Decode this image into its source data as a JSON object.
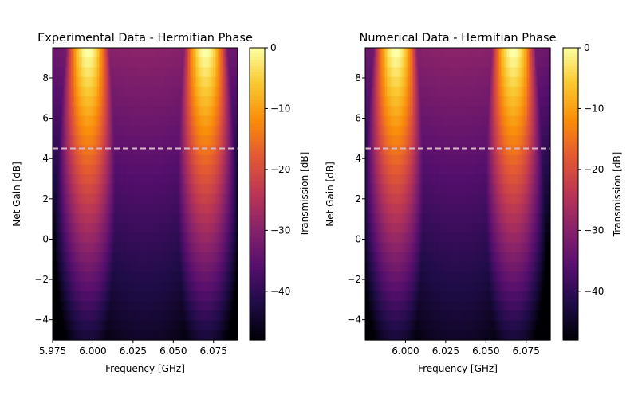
{
  "chart_data": [
    {
      "type": "heatmap",
      "title": "Experimental Data - Hermitian Phase",
      "xlabel": "Frequency [GHz]",
      "ylabel": "Net Gain [dB]",
      "xlim": [
        5.975,
        6.09
      ],
      "ylim": [
        -5,
        9.5
      ],
      "xticks": [
        5.975,
        6.0,
        6.025,
        6.05,
        6.075
      ],
      "xtick_labels": [
        "5.975",
        "6.000",
        "6.025",
        "6.050",
        "6.075"
      ],
      "yticks": [
        -4,
        -2,
        0,
        2,
        4,
        6,
        8
      ],
      "ytick_labels": [
        "−4",
        "−2",
        "0",
        "2",
        "4",
        "6",
        "8"
      ],
      "colorbar": {
        "label": "Transmission [dB]",
        "colormap": "inferno",
        "range": [
          -48,
          0
        ],
        "ticks": [
          0,
          -10,
          -20,
          -30,
          -40
        ],
        "tick_labels": [
          "0",
          "−10",
          "−20",
          "−30",
          "−40"
        ]
      },
      "reference_line": {
        "style": "dashed",
        "y": 4.5,
        "color": "#d9b8c6"
      },
      "model": {
        "peak_frequencies": [
          5.997,
          6.07
        ],
        "gain_rows": 30,
        "freq_columns": 120
      }
    },
    {
      "type": "heatmap",
      "title": "Numerical Data - Hermitian Phase",
      "xlabel": "Frequency [GHz]",
      "ylabel": "Net Gain [dB]",
      "xlim": [
        5.975,
        6.09
      ],
      "ylim": [
        -5,
        9.5
      ],
      "xticks": [
        6.0,
        6.025,
        6.05,
        6.075
      ],
      "xtick_labels": [
        "6.000",
        "6.025",
        "6.050",
        "6.075"
      ],
      "yticks": [
        -4,
        -2,
        0,
        2,
        4,
        6,
        8
      ],
      "ytick_labels": [
        "−4",
        "−2",
        "0",
        "2",
        "4",
        "6",
        "8"
      ],
      "colorbar": {
        "label": "Transmission [dB]",
        "colormap": "inferno",
        "range": [
          -48,
          0
        ],
        "ticks": [
          0,
          -10,
          -20,
          -30,
          -40
        ],
        "tick_labels": [
          "0",
          "−10",
          "−20",
          "−30",
          "−40"
        ]
      },
      "reference_line": {
        "style": "dashed",
        "y": 4.5,
        "color": "#d9b8c6"
      },
      "model": {
        "peak_frequencies": [
          5.994,
          6.067
        ],
        "gain_rows": 30,
        "freq_columns": 120
      }
    }
  ]
}
